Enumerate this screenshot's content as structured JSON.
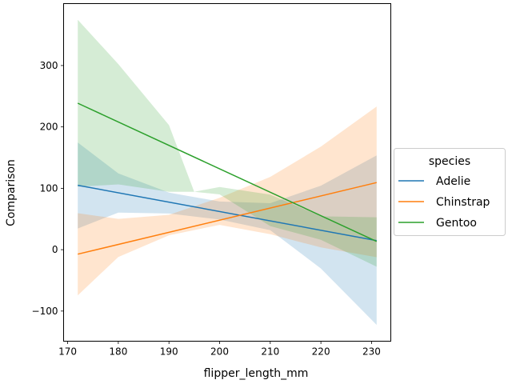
{
  "chart_data": {
    "type": "line",
    "xlabel": "flipper_length_mm",
    "ylabel": "Comparison",
    "xlim": [
      169.2,
      233.8
    ],
    "ylim": [
      -149.1,
      400.9
    ],
    "xticks": [
      170,
      180,
      190,
      200,
      210,
      220,
      230
    ],
    "yticks": [
      -100,
      0,
      100,
      200,
      300
    ],
    "grid": false,
    "legend": {
      "title": "species",
      "placement": "right"
    },
    "series": [
      {
        "name": "Adelie",
        "color": "#1f77b4",
        "x": [
          172,
          231
        ],
        "y": [
          104.9,
          14.9
        ],
        "ci_x": [
          172,
          180,
          190,
          200,
          210,
          220,
          231
        ],
        "ci_upper": [
          174.6,
          124.2,
          93.1,
          78.4,
          75.7,
          104.2,
          153.5
        ],
        "ci_lower": [
          34.5,
          60.5,
          58.9,
          49.1,
          31.8,
          -30.6,
          -122.5
        ]
      },
      {
        "name": "Chinstrap",
        "color": "#ff7f0e",
        "x": [
          172,
          231
        ],
        "y": [
          -7.3,
          109.4
        ],
        "ci_x": [
          172,
          180,
          190,
          200,
          210,
          220,
          231
        ],
        "ci_upper": [
          59.4,
          50.2,
          56.8,
          84.6,
          118.6,
          167.9,
          233.3
        ],
        "ci_lower": [
          -74.4,
          -11.9,
          23.5,
          40.4,
          25.1,
          3.7,
          -12.2
        ]
      },
      {
        "name": "Gentoo",
        "color": "#2ca02c",
        "x": [
          172,
          231
        ],
        "y": [
          238.6,
          13.4
        ],
        "ci_x": [
          172,
          180,
          190,
          195,
          200,
          210,
          220,
          231
        ],
        "ci_upper": [
          374.6,
          302.4,
          202.9,
          94.3,
          102.2,
          89.8,
          54.3,
          52.8
        ],
        "ci_lower": [
          102.6,
          106.3,
          94.3,
          94.3,
          90.1,
          38.4,
          16.1,
          -27.8
        ]
      }
    ]
  }
}
